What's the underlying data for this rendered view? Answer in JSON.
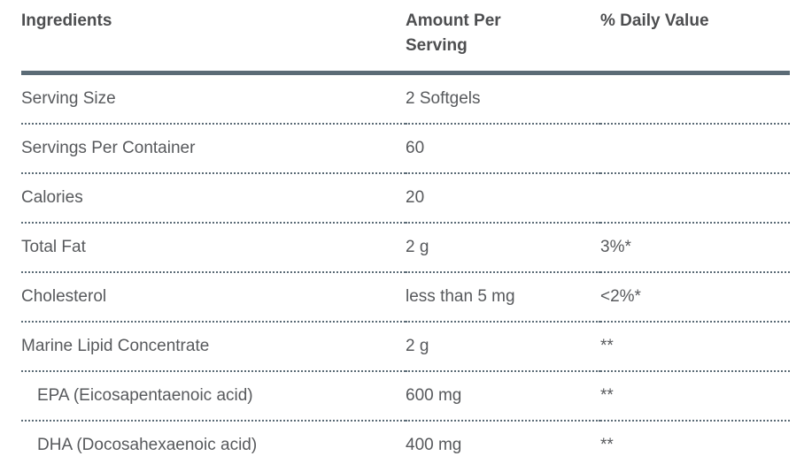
{
  "table": {
    "columns": [
      {
        "label": "Ingredients"
      },
      {
        "label": "Amount Per Serving"
      },
      {
        "label": "% Daily Value"
      }
    ],
    "rows": [
      {
        "ingredient": "Serving Size",
        "amount": "2 Softgels",
        "daily_value": "",
        "indent": false
      },
      {
        "ingredient": "Servings Per Container",
        "amount": "60",
        "daily_value": "",
        "indent": false
      },
      {
        "ingredient": "Calories",
        "amount": "20",
        "daily_value": "",
        "indent": false
      },
      {
        "ingredient": "Total Fat",
        "amount": "2 g",
        "daily_value": "3%*",
        "indent": false
      },
      {
        "ingredient": "Cholesterol",
        "amount": "less than 5 mg",
        "daily_value": "<2%*",
        "indent": false
      },
      {
        "ingredient": "Marine Lipid Concentrate",
        "amount": "2 g",
        "daily_value": "**",
        "indent": false
      },
      {
        "ingredient": "EPA (Eicosapentaenoic acid)",
        "amount": "600 mg",
        "daily_value": "**",
        "indent": true
      },
      {
        "ingredient": "DHA (Docosahexaenoic acid)",
        "amount": "400 mg",
        "daily_value": "**",
        "indent": true
      }
    ]
  },
  "colors": {
    "background": "#ffffff",
    "header_text": "#4d4e50",
    "body_text": "#57595c",
    "rule": "#5b6b76"
  }
}
